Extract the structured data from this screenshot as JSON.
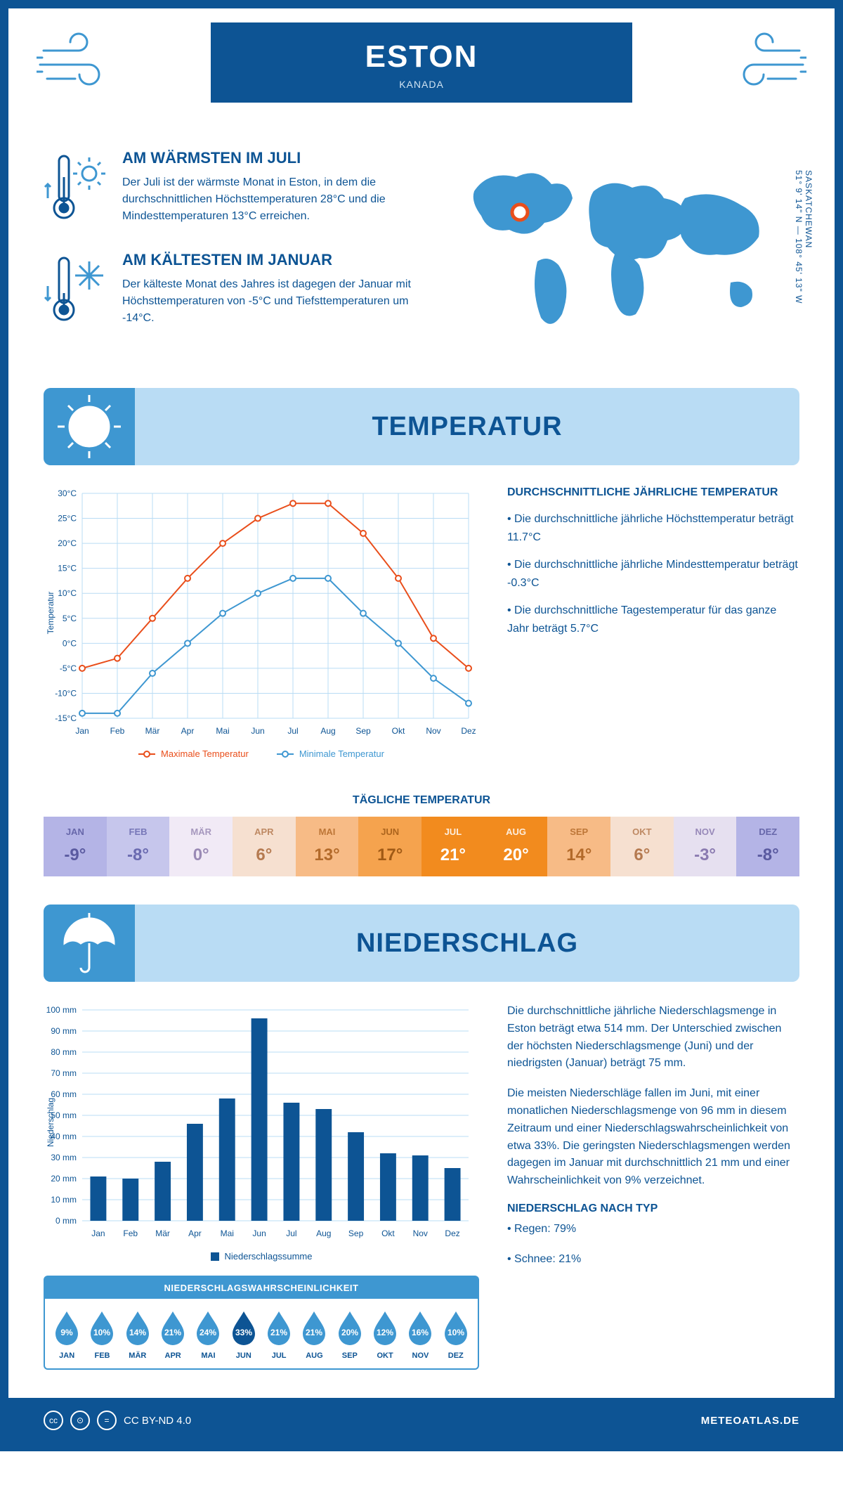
{
  "header": {
    "city": "ESTON",
    "country": "KANADA"
  },
  "coords": {
    "region": "SASKATCHEWAN",
    "lat": "51° 9' 14\" N",
    "lon": "108° 45' 13\" W"
  },
  "warmest": {
    "title": "AM WÄRMSTEN IM JULI",
    "text": "Der Juli ist der wärmste Monat in Eston, in dem die durchschnittlichen Höchsttemperaturen 28°C und die Mindesttemperaturen 13°C erreichen."
  },
  "coldest": {
    "title": "AM KÄLTESTEN IM JANUAR",
    "text": "Der kälteste Monat des Jahres ist dagegen der Januar mit Höchsttemperaturen von -5°C und Tiefsttemperaturen um -14°C."
  },
  "sections": {
    "temperature": "TEMPERATUR",
    "precip": "NIEDERSCHLAG"
  },
  "tempChart": {
    "type": "line",
    "months": [
      "Jan",
      "Feb",
      "Mär",
      "Apr",
      "Mai",
      "Jun",
      "Jul",
      "Aug",
      "Sep",
      "Okt",
      "Nov",
      "Dez"
    ],
    "max_series": [
      -5,
      -3,
      5,
      13,
      20,
      25,
      28,
      28,
      22,
      13,
      1,
      -5
    ],
    "min_series": [
      -14,
      -14,
      -6,
      0,
      6,
      10,
      13,
      13,
      6,
      0,
      -7,
      -12
    ],
    "ylabel": "Temperatur",
    "ylim": [
      -15,
      30
    ],
    "ytick_step": 5,
    "max_color": "#e94e1b",
    "min_color": "#3e97d1",
    "grid_color": "#b9dcf4",
    "marker_style": "circle-open",
    "line_width": 2,
    "background": "#ffffff",
    "legend_max": "Maximale Temperatur",
    "legend_min": "Minimale Temperatur"
  },
  "tempText": {
    "heading": "DURCHSCHNITTLICHE JÄHRLICHE TEMPERATUR",
    "b1": "• Die durchschnittliche jährliche Höchsttemperatur beträgt 11.7°C",
    "b2": "• Die durchschnittliche jährliche Mindesttemperatur beträgt -0.3°C",
    "b3": "• Die durchschnittliche Tagestemperatur für das ganze Jahr beträgt 5.7°C"
  },
  "dailyTemp": {
    "title": "TÄGLICHE TEMPERATUR",
    "months": [
      "JAN",
      "FEB",
      "MÄR",
      "APR",
      "MAI",
      "JUN",
      "JUL",
      "AUG",
      "SEP",
      "OKT",
      "NOV",
      "DEZ"
    ],
    "values": [
      "-9°",
      "-8°",
      "0°",
      "6°",
      "13°",
      "17°",
      "21°",
      "20°",
      "14°",
      "6°",
      "-3°",
      "-8°"
    ],
    "bg_colors": [
      "#b4b4e6",
      "#c6c6ec",
      "#f1eaf6",
      "#f6e0d0",
      "#f7bb86",
      "#f5a34e",
      "#f28b1e",
      "#f28b1e",
      "#f7bb86",
      "#f6e0d0",
      "#e6e0f0",
      "#b4b4e6"
    ],
    "text_colors": [
      "#5a5aa0",
      "#6a6ab0",
      "#9a8ab5",
      "#b57a50",
      "#b36a2a",
      "#a05a15",
      "#ffffff",
      "#ffffff",
      "#b36a2a",
      "#b57a50",
      "#8a7ab0",
      "#5a5aa0"
    ]
  },
  "precipChart": {
    "type": "bar",
    "months": [
      "Jan",
      "Feb",
      "Mär",
      "Apr",
      "Mai",
      "Jun",
      "Jul",
      "Aug",
      "Sep",
      "Okt",
      "Nov",
      "Dez"
    ],
    "values": [
      21,
      20,
      28,
      46,
      58,
      96,
      56,
      53,
      42,
      32,
      31,
      25
    ],
    "ylabel": "Niederschlag",
    "ylim": [
      0,
      100
    ],
    "ytick_step": 10,
    "bar_color": "#0d5494",
    "grid_color": "#b9dcf4",
    "bar_width": 0.5,
    "legend": "Niederschlagssumme"
  },
  "precipProb": {
    "title": "NIEDERSCHLAGSWAHRSCHEINLICHKEIT",
    "months": [
      "JAN",
      "FEB",
      "MÄR",
      "APR",
      "MAI",
      "JUN",
      "JUL",
      "AUG",
      "SEP",
      "OKT",
      "NOV",
      "DEZ"
    ],
    "values": [
      "9%",
      "10%",
      "14%",
      "21%",
      "24%",
      "33%",
      "21%",
      "21%",
      "20%",
      "12%",
      "16%",
      "10%"
    ],
    "highlight_index": 5,
    "drop_color": "#3e97d1",
    "highlight_color": "#0d5494"
  },
  "precipText": {
    "p1": "Die durchschnittliche jährliche Niederschlagsmenge in Eston beträgt etwa 514 mm. Der Unterschied zwischen der höchsten Niederschlagsmenge (Juni) und der niedrigsten (Januar) beträgt 75 mm.",
    "p2": "Die meisten Niederschläge fallen im Juni, mit einer monatlichen Niederschlagsmenge von 96 mm in diesem Zeitraum und einer Niederschlagswahrscheinlichkeit von etwa 33%. Die geringsten Niederschlagsmengen werden dagegen im Januar mit durchschnittlich 21 mm und einer Wahrscheinlichkeit von 9% verzeichnet.",
    "type_heading": "NIEDERSCHLAG NACH TYP",
    "rain": "• Regen: 79%",
    "snow": "• Schnee: 21%"
  },
  "footer": {
    "license": "CC BY-ND 4.0",
    "site": "METEOATLAS.DE"
  }
}
